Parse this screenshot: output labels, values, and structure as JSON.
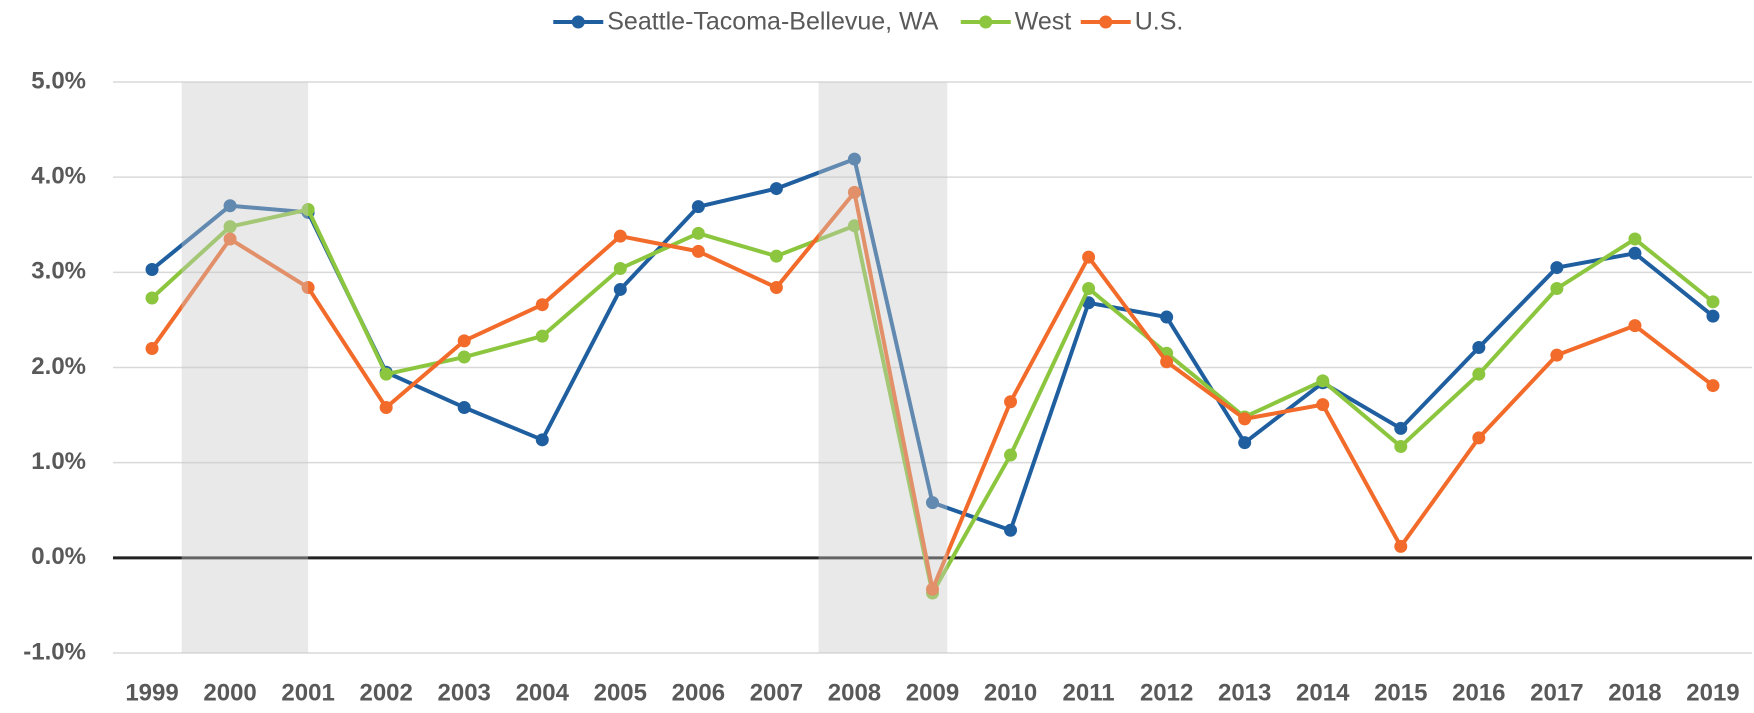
{
  "chart_data": {
    "type": "line",
    "categories": [
      "1999",
      "2000",
      "2001",
      "2002",
      "2003",
      "2004",
      "2005",
      "2006",
      "2007",
      "2008",
      "2009",
      "2010",
      "2011",
      "2012",
      "2013",
      "2014",
      "2015",
      "2016",
      "2017",
      "2018",
      "2019"
    ],
    "series": [
      {
        "name": "Seattle-Tacoma-Bellevue, WA",
        "color": "#1f5fa0",
        "values": [
          3.03,
          3.7,
          3.63,
          1.95,
          1.58,
          1.24,
          2.82,
          3.69,
          3.88,
          4.19,
          0.58,
          0.29,
          2.68,
          2.53,
          1.21,
          1.84,
          1.36,
          2.21,
          3.05,
          3.2,
          2.54
        ]
      },
      {
        "name": "West",
        "color": "#8cc63f",
        "values": [
          2.73,
          3.48,
          3.66,
          1.93,
          2.11,
          2.33,
          3.04,
          3.41,
          3.17,
          3.49,
          -0.37,
          1.08,
          2.83,
          2.15,
          1.48,
          1.86,
          1.17,
          1.93,
          2.83,
          3.35,
          2.69
        ]
      },
      {
        "name": "U.S.",
        "color": "#f26b2a",
        "values": [
          2.2,
          3.35,
          2.84,
          1.58,
          2.28,
          2.66,
          3.38,
          3.22,
          2.84,
          3.84,
          -0.33,
          1.64,
          3.16,
          2.06,
          1.46,
          1.61,
          0.12,
          1.26,
          2.13,
          2.44,
          1.81
        ]
      }
    ],
    "ylim": [
      -1,
      5
    ],
    "yticks": [
      {
        "value": -1,
        "label": "-1.0%"
      },
      {
        "value": 0,
        "label": "0.0%"
      },
      {
        "value": 1,
        "label": "1.0%"
      },
      {
        "value": 2,
        "label": "2.0%"
      },
      {
        "value": 3,
        "label": "3.0%"
      },
      {
        "value": 4,
        "label": "4.0%"
      },
      {
        "value": 5,
        "label": "5.0%"
      }
    ],
    "grid": true,
    "legend": "top"
  }
}
